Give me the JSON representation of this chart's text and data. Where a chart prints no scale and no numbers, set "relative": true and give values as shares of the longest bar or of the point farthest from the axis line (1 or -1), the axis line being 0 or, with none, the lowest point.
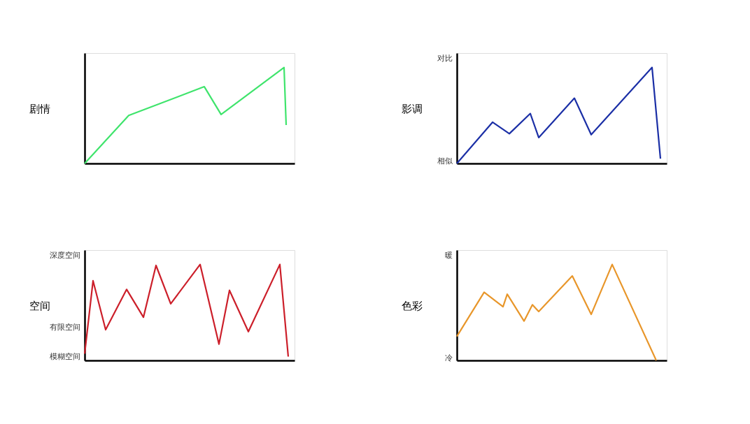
{
  "chart_data": [
    {
      "type": "line",
      "ylabel": "剧情",
      "relative": true,
      "tick_labels": false,
      "grid": false,
      "marker": "none",
      "line_style": "solid",
      "categories": [
        null,
        null,
        null,
        null,
        null,
        null,
        null,
        null,
        null,
        null,
        null,
        null,
        null,
        null,
        null,
        null,
        null,
        null,
        null,
        null,
        null,
        null,
        null,
        null,
        null,
        null,
        null,
        null,
        null,
        null,
        null,
        null,
        null,
        null,
        null,
        null,
        null,
        null,
        null,
        null,
        null,
        null,
        null,
        null,
        null,
        null,
        null,
        null,
        null,
        null,
        null,
        null,
        null,
        null,
        null,
        null,
        null,
        null,
        null,
        null,
        null,
        null,
        null,
        null,
        null,
        null,
        null,
        null,
        null,
        null,
        null,
        null,
        null,
        null,
        null,
        null,
        null,
        null,
        null,
        null,
        null,
        null,
        null,
        null,
        null,
        null,
        null,
        null,
        null,
        null,
        null,
        null,
        null,
        null,
        null,
        null,
        null,
        null,
        null,
        null,
        null
      ],
      "series": [
        {
          "color": "#3fe46c",
          "values": [
            0,
            null,
            null,
            null,
            null,
            null,
            null,
            null,
            null,
            null,
            null,
            null,
            null,
            null,
            null,
            null,
            null,
            null,
            null,
            null,
            null,
            0.5,
            null,
            null,
            null,
            null,
            null,
            null,
            null,
            null,
            null,
            null,
            null,
            null,
            null,
            null,
            null,
            null,
            null,
            null,
            null,
            null,
            null,
            null,
            null,
            null,
            null,
            null,
            null,
            null,
            null,
            null,
            null,
            null,
            null,
            null,
            null,
            0.8,
            null,
            null,
            null,
            null,
            null,
            null,
            null,
            0.51,
            null,
            null,
            null,
            null,
            null,
            null,
            null,
            null,
            null,
            null,
            null,
            null,
            null,
            null,
            null,
            null,
            null,
            null,
            null,
            null,
            null,
            null,
            null,
            null,
            null,
            null,
            null,
            null,
            null,
            1,
            0.4,
            null,
            null,
            null,
            null
          ]
        }
      ]
    },
    {
      "type": "line",
      "ylabel": "影调",
      "relative": true,
      "tick_labels": false,
      "grid": false,
      "marker": "none",
      "line_style": "solid",
      "annotations": [
        "相似",
        "对比"
      ],
      "categories": [
        null,
        null,
        null,
        null,
        null,
        null,
        null,
        null,
        null,
        null,
        null,
        null,
        null,
        null,
        null,
        null,
        null,
        null,
        null,
        null,
        null,
        null,
        null,
        null,
        null,
        null,
        null,
        null,
        null,
        null,
        null,
        null,
        null,
        null,
        null,
        null,
        null,
        null,
        null,
        null,
        null,
        null,
        null,
        null,
        null,
        null,
        null,
        null,
        null,
        null,
        null,
        null,
        null,
        null,
        null,
        null,
        null,
        null,
        null,
        null,
        null,
        null,
        null,
        null,
        null,
        null,
        null,
        null,
        null,
        null,
        null,
        null,
        null,
        null,
        null,
        null,
        null,
        null,
        null,
        null,
        null,
        null,
        null,
        null,
        null,
        null,
        null,
        null,
        null,
        null,
        null,
        null,
        null,
        null,
        null,
        null,
        null,
        null,
        null,
        null,
        null
      ],
      "series": [
        {
          "color": "#1b2fa6",
          "values": [
            0,
            null,
            null,
            null,
            null,
            null,
            null,
            null,
            null,
            null,
            null,
            null,
            null,
            null,
            null,
            null,
            null,
            0.43,
            null,
            null,
            null,
            null,
            null,
            null,
            null,
            0.31,
            null,
            null,
            null,
            null,
            null,
            null,
            null,
            null,
            null,
            0.52,
            null,
            null,
            null,
            0.27,
            null,
            null,
            null,
            null,
            null,
            null,
            null,
            null,
            null,
            null,
            null,
            null,
            null,
            null,
            null,
            null,
            0.68,
            null,
            null,
            null,
            null,
            null,
            null,
            null,
            0.3,
            null,
            null,
            null,
            null,
            null,
            null,
            null,
            null,
            null,
            null,
            null,
            null,
            null,
            null,
            null,
            null,
            null,
            null,
            null,
            null,
            null,
            null,
            null,
            null,
            null,
            null,
            null,
            null,
            1,
            null,
            null,
            null,
            0.05,
            null,
            null,
            null
          ]
        }
      ]
    },
    {
      "type": "line",
      "ylabel": "空间",
      "relative": true,
      "tick_labels": false,
      "grid": false,
      "marker": "none",
      "line_style": "solid",
      "annotations": [
        "模糊空间",
        "有限空间",
        "深度空间"
      ],
      "categories": [
        null,
        null,
        null,
        null,
        null,
        null,
        null,
        null,
        null,
        null,
        null,
        null,
        null,
        null,
        null,
        null,
        null,
        null,
        null,
        null,
        null,
        null,
        null,
        null,
        null,
        null,
        null,
        null,
        null,
        null,
        null,
        null,
        null,
        null,
        null,
        null,
        null,
        null,
        null,
        null,
        null,
        null,
        null,
        null,
        null,
        null,
        null,
        null,
        null,
        null,
        null,
        null,
        null,
        null,
        null,
        null,
        null,
        null,
        null,
        null,
        null,
        null,
        null,
        null,
        null,
        null,
        null,
        null,
        null,
        null,
        null,
        null,
        null,
        null,
        null,
        null,
        null,
        null,
        null,
        null,
        null,
        null,
        null,
        null,
        null,
        null,
        null,
        null,
        null,
        null,
        null,
        null,
        null,
        null,
        null,
        null,
        null,
        null,
        null,
        null,
        null
      ],
      "series": [
        {
          "color": "#cc1f2a",
          "values": [
            0.07,
            null,
            null,
            null,
            0.83,
            null,
            null,
            null,
            null,
            null,
            0.32,
            null,
            null,
            null,
            null,
            null,
            null,
            null,
            null,
            null,
            0.74,
            null,
            null,
            null,
            null,
            null,
            null,
            null,
            0.45,
            null,
            null,
            null,
            null,
            null,
            0.99,
            null,
            null,
            null,
            null,
            null,
            null,
            0.59,
            null,
            null,
            null,
            null,
            null,
            null,
            null,
            null,
            null,
            null,
            null,
            null,
            null,
            1,
            null,
            null,
            null,
            null,
            null,
            null,
            null,
            null,
            0.17,
            null,
            null,
            null,
            null,
            0.73,
            null,
            null,
            null,
            null,
            null,
            null,
            null,
            null,
            0.3,
            null,
            null,
            null,
            null,
            null,
            null,
            null,
            null,
            null,
            null,
            null,
            null,
            null,
            null,
            1,
            null,
            null,
            null,
            0.04,
            null,
            null,
            null
          ]
        }
      ]
    },
    {
      "type": "line",
      "ylabel": "色彩",
      "relative": true,
      "tick_labels": false,
      "grid": false,
      "marker": "none",
      "line_style": "solid",
      "annotations": [
        "冷",
        "暖"
      ],
      "categories": [
        null,
        null,
        null,
        null,
        null,
        null,
        null,
        null,
        null,
        null,
        null,
        null,
        null,
        null,
        null,
        null,
        null,
        null,
        null,
        null,
        null,
        null,
        null,
        null,
        null,
        null,
        null,
        null,
        null,
        null,
        null,
        null,
        null,
        null,
        null,
        null,
        null,
        null,
        null,
        null,
        null,
        null,
        null,
        null,
        null,
        null,
        null,
        null,
        null,
        null,
        null,
        null,
        null,
        null,
        null,
        null,
        null,
        null,
        null,
        null,
        null,
        null,
        null,
        null,
        null,
        null,
        null,
        null,
        null,
        null,
        null,
        null,
        null,
        null,
        null,
        null,
        null,
        null,
        null,
        null,
        null,
        null,
        null,
        null,
        null,
        null,
        null,
        null,
        null,
        null,
        null,
        null,
        null,
        null,
        null,
        null,
        null,
        null,
        null,
        null,
        null
      ],
      "series": [
        {
          "color": "#e8962a",
          "values": [
            0.25,
            null,
            null,
            null,
            null,
            null,
            null,
            null,
            null,
            null,
            null,
            null,
            null,
            0.71,
            null,
            null,
            null,
            null,
            null,
            null,
            null,
            null,
            0.56,
            null,
            0.69,
            null,
            null,
            null,
            null,
            null,
            null,
            null,
            0.41,
            null,
            null,
            null,
            0.58,
            null,
            null,
            0.51,
            null,
            null,
            null,
            null,
            null,
            null,
            null,
            null,
            null,
            null,
            null,
            null,
            null,
            null,
            null,
            0.88,
            null,
            null,
            null,
            null,
            null,
            null,
            null,
            null,
            0.48,
            null,
            null,
            null,
            null,
            null,
            null,
            null,
            null,
            null,
            1,
            null,
            null,
            null,
            null,
            null,
            null,
            null,
            null,
            null,
            null,
            null,
            null,
            null,
            null,
            null,
            null,
            null,
            null,
            null,
            null,
            0,
            null,
            null,
            null,
            null,
            null
          ]
        }
      ]
    }
  ]
}
